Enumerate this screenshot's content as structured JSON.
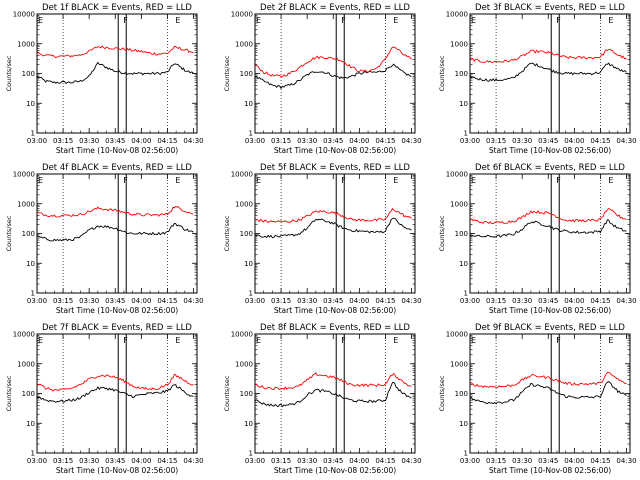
{
  "chart_data": {
    "type": "line",
    "y_scale": "log",
    "ylim": [
      1,
      10000
    ],
    "y_ticks": [
      1,
      10,
      100,
      1000,
      10000
    ],
    "y_tick_labels": [
      "1",
      "10",
      "100",
      "1000",
      "10000"
    ],
    "x_ticks": [
      "03:00",
      "03:15",
      "03:30",
      "03:45",
      "04:00",
      "04:15",
      "04:30"
    ],
    "grid": "dotted vertical lines at 03:15 and 04:15",
    "colors": {
      "events": "#000000",
      "lld": "#ff0000"
    },
    "ylabel": "Counts/sec",
    "xlabel": "Start Time (10-Nov-08 02:56:00)",
    "markers": [
      {
        "label": "E",
        "time": "03:00"
      },
      {
        "label": "F",
        "time": "03:49"
      },
      {
        "label": "E",
        "time": "04:19"
      }
    ],
    "time_x": [
      "03:00",
      "03:05",
      "03:10",
      "03:15",
      "03:20",
      "03:25",
      "03:30",
      "03:35",
      "03:40",
      "03:45",
      "03:48",
      "03:51",
      "03:55",
      "04:00",
      "04:05",
      "04:10",
      "04:15",
      "04:19",
      "04:22",
      "04:25",
      "04:28",
      "04:30"
    ],
    "panels": [
      {
        "title": "Det 1f BLACK = Events, RED = LLD",
        "series": [
          {
            "name": "Events",
            "values": [
              80,
              55,
              50,
              50,
              50,
              55,
              80,
              220,
              160,
              120,
              110,
              105,
              100,
              100,
              100,
              100,
              110,
              220,
              170,
              130,
              110,
              100
            ]
          },
          {
            "name": "LLD",
            "values": [
              500,
              400,
              380,
              380,
              390,
              420,
              550,
              800,
              750,
              700,
              680,
              650,
              600,
              550,
              480,
              450,
              480,
              750,
              700,
              620,
              560,
              500
            ]
          }
        ]
      },
      {
        "title": "Det 2f BLACK = Events, RED = LLD",
        "series": [
          {
            "name": "Events",
            "values": [
              80,
              55,
              40,
              35,
              40,
              55,
              90,
              120,
              110,
              85,
              75,
              70,
              80,
              100,
              110,
              110,
              130,
              200,
              150,
              110,
              90,
              80
            ]
          },
          {
            "name": "LLD",
            "values": [
              200,
              110,
              85,
              80,
              100,
              150,
              250,
              350,
              350,
              320,
              300,
              250,
              170,
              120,
              120,
              150,
              300,
              800,
              650,
              450,
              350,
              300
            ]
          }
        ]
      },
      {
        "title": "Det 3f BLACK = Events, RED = LLD",
        "series": [
          {
            "name": "Events",
            "values": [
              80,
              65,
              60,
              60,
              62,
              70,
              120,
              220,
              180,
              140,
              120,
              110,
              100,
              100,
              100,
              100,
              110,
              220,
              180,
              140,
              120,
              110
            ]
          },
          {
            "name": "LLD",
            "values": [
              320,
              260,
              250,
              250,
              255,
              280,
              380,
              550,
              550,
              500,
              450,
              400,
              350,
              340,
              340,
              340,
              360,
              650,
              550,
              420,
              350,
              320
            ]
          }
        ]
      },
      {
        "title": "Det 4f BLACK = Events, RED = LLD",
        "series": [
          {
            "name": "Events",
            "values": [
              80,
              65,
              60,
              60,
              62,
              75,
              130,
              180,
              170,
              150,
              130,
              110,
              100,
              100,
              100,
              100,
              110,
              220,
              180,
              140,
              120,
              110
            ]
          },
          {
            "name": "LLD",
            "values": [
              500,
              420,
              400,
              400,
              410,
              430,
              550,
              700,
              650,
              600,
              550,
              500,
              450,
              420,
              420,
              420,
              450,
              800,
              700,
              580,
              500,
              450
            ]
          }
        ]
      },
      {
        "title": "Det 5f BLACK = Events, RED = LLD",
        "series": [
          {
            "name": "Events",
            "values": [
              90,
              80,
              80,
              80,
              85,
              95,
              150,
              300,
              270,
              220,
              180,
              150,
              130,
              120,
              115,
              110,
              120,
              350,
              250,
              170,
              140,
              130
            ]
          },
          {
            "name": "LLD",
            "values": [
              300,
              260,
              250,
              250,
              255,
              280,
              380,
              550,
              550,
              500,
              450,
              380,
              300,
              280,
              280,
              280,
              300,
              650,
              550,
              420,
              350,
              320
            ]
          }
        ]
      },
      {
        "title": "Det 6f BLACK = Events, RED = LLD",
        "series": [
          {
            "name": "Events",
            "values": [
              90,
              80,
              80,
              80,
              85,
              95,
              140,
              250,
              220,
              180,
              150,
              130,
              120,
              110,
              110,
              110,
              120,
              280,
              200,
              150,
              130,
              120
            ]
          },
          {
            "name": "LLD",
            "values": [
              300,
              250,
              230,
              230,
              240,
              260,
              350,
              550,
              520,
              480,
              430,
              350,
              280,
              270,
              270,
              270,
              290,
              650,
              550,
              400,
              330,
              300
            ]
          }
        ]
      },
      {
        "title": "Det 7f BLACK = Events, RED = LLD",
        "series": [
          {
            "name": "Events",
            "values": [
              80,
              60,
              55,
              55,
              60,
              70,
              110,
              150,
              150,
              130,
              110,
              95,
              80,
              90,
              100,
              105,
              120,
              200,
              150,
              110,
              90,
              80
            ]
          },
          {
            "name": "LLD",
            "values": [
              220,
              150,
              130,
              130,
              150,
              200,
              300,
              400,
              400,
              350,
              300,
              250,
              180,
              150,
              140,
              150,
              200,
              400,
              350,
              270,
              220,
              200
            ]
          }
        ]
      },
      {
        "title": "Det 8f BLACK = Events, RED = LLD",
        "series": [
          {
            "name": "Events",
            "values": [
              60,
              45,
              40,
              40,
              42,
              50,
              90,
              130,
              120,
              100,
              85,
              70,
              60,
              55,
              55,
              55,
              60,
              250,
              150,
              100,
              80,
              70
            ]
          },
          {
            "name": "LLD",
            "values": [
              200,
              160,
              150,
              150,
              155,
              170,
              280,
              450,
              400,
              350,
              300,
              250,
              200,
              190,
              190,
              190,
              200,
              450,
              350,
              250,
              200,
              180
            ]
          }
        ]
      },
      {
        "title": "Det 9f BLACK = Events, RED = LLD",
        "series": [
          {
            "name": "Events",
            "values": [
              70,
              55,
              50,
              50,
              52,
              60,
              110,
              200,
              180,
              150,
              120,
              100,
              80,
              75,
              75,
              75,
              80,
              250,
              180,
              120,
              95,
              85
            ]
          },
          {
            "name": "LLD",
            "values": [
              220,
              180,
              170,
              170,
              175,
              190,
              280,
              400,
              380,
              340,
              300,
              260,
              220,
              210,
              210,
              210,
              220,
              500,
              400,
              300,
              240,
              220
            ]
          }
        ]
      }
    ]
  }
}
